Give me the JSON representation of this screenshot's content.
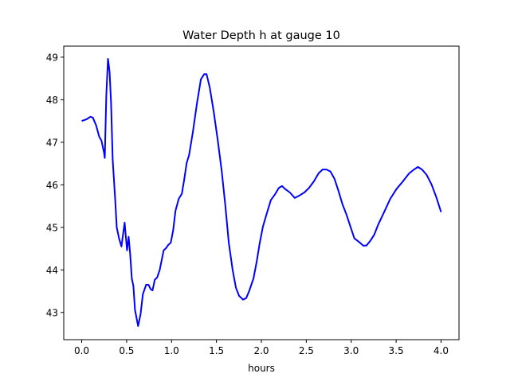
{
  "chart_data": {
    "type": "line",
    "title": "Water Depth h at gauge 10",
    "xlabel": "hours",
    "ylabel": "",
    "xlim": [
      -0.2,
      4.2
    ],
    "ylim": [
      42.36,
      49.26
    ],
    "xticks": [
      0.0,
      0.5,
      1.0,
      1.5,
      2.0,
      2.5,
      3.0,
      3.5,
      4.0
    ],
    "xtick_labels": [
      "0.0",
      "0.5",
      "1.0",
      "1.5",
      "2.0",
      "2.5",
      "3.0",
      "3.5",
      "4.0"
    ],
    "yticks": [
      43,
      44,
      45,
      46,
      47,
      48,
      49
    ],
    "ytick_labels": [
      "43",
      "44",
      "45",
      "46",
      "47",
      "48",
      "49"
    ],
    "grid": false,
    "series": [
      {
        "name": "h",
        "color": "#0000ff",
        "x": [
          0,
          0.053,
          0.097,
          0.124,
          0.16,
          0.195,
          0.22,
          0.248,
          0.257,
          0.274,
          0.292,
          0.31,
          0.327,
          0.345,
          0.372,
          0.39,
          0.416,
          0.442,
          0.478,
          0.504,
          0.522,
          0.54,
          0.558,
          0.575,
          0.593,
          0.628,
          0.655,
          0.681,
          0.717,
          0.743,
          0.77,
          0.788,
          0.814,
          0.84,
          0.867,
          0.912,
          0.938,
          0.965,
          0.991,
          1.018,
          1.044,
          1.08,
          1.115,
          1.142,
          1.168,
          1.195,
          1.239,
          1.283,
          1.327,
          1.363,
          1.39,
          1.425,
          1.469,
          1.513,
          1.558,
          1.6,
          1.637,
          1.681,
          1.717,
          1.752,
          1.796,
          1.832,
          1.867,
          1.912,
          1.947,
          1.982,
          2.018,
          2.062,
          2.106,
          2.15,
          2.195,
          2.23,
          2.265,
          2.318,
          2.372,
          2.425,
          2.478,
          2.531,
          2.584,
          2.637,
          2.681,
          2.726,
          2.77,
          2.814,
          2.858,
          2.903,
          2.947,
          2.991,
          3.035,
          3.097,
          3.133,
          3.168,
          3.212,
          3.257,
          3.3,
          3.363,
          3.434,
          3.504,
          3.575,
          3.646,
          3.699,
          3.743,
          3.788,
          3.841,
          3.894,
          3.947,
          4.0
        ],
        "y": [
          47.5,
          47.54,
          47.6,
          47.58,
          47.4,
          47.13,
          47.04,
          46.76,
          46.63,
          48.1,
          48.96,
          48.66,
          47.92,
          46.6,
          45.67,
          45.0,
          44.74,
          44.55,
          45.11,
          44.46,
          44.78,
          44.36,
          43.8,
          43.62,
          43.06,
          42.68,
          42.96,
          43.43,
          43.65,
          43.65,
          43.54,
          43.52,
          43.77,
          43.82,
          43.99,
          44.46,
          44.51,
          44.59,
          44.64,
          44.93,
          45.39,
          45.67,
          45.79,
          46.14,
          46.51,
          46.7,
          47.26,
          47.92,
          48.48,
          48.6,
          48.6,
          48.29,
          47.73,
          47.07,
          46.33,
          45.49,
          44.64,
          43.99,
          43.58,
          43.39,
          43.3,
          43.34,
          43.52,
          43.8,
          44.18,
          44.64,
          45.02,
          45.34,
          45.64,
          45.77,
          45.93,
          45.97,
          45.9,
          45.82,
          45.69,
          45.75,
          45.82,
          45.93,
          46.08,
          46.27,
          46.36,
          46.36,
          46.31,
          46.14,
          45.86,
          45.54,
          45.3,
          45.02,
          44.74,
          44.64,
          44.57,
          44.57,
          44.68,
          44.83,
          45.06,
          45.34,
          45.67,
          45.9,
          46.08,
          46.27,
          46.36,
          46.42,
          46.36,
          46.23,
          46.01,
          45.71,
          45.36
        ]
      }
    ]
  }
}
